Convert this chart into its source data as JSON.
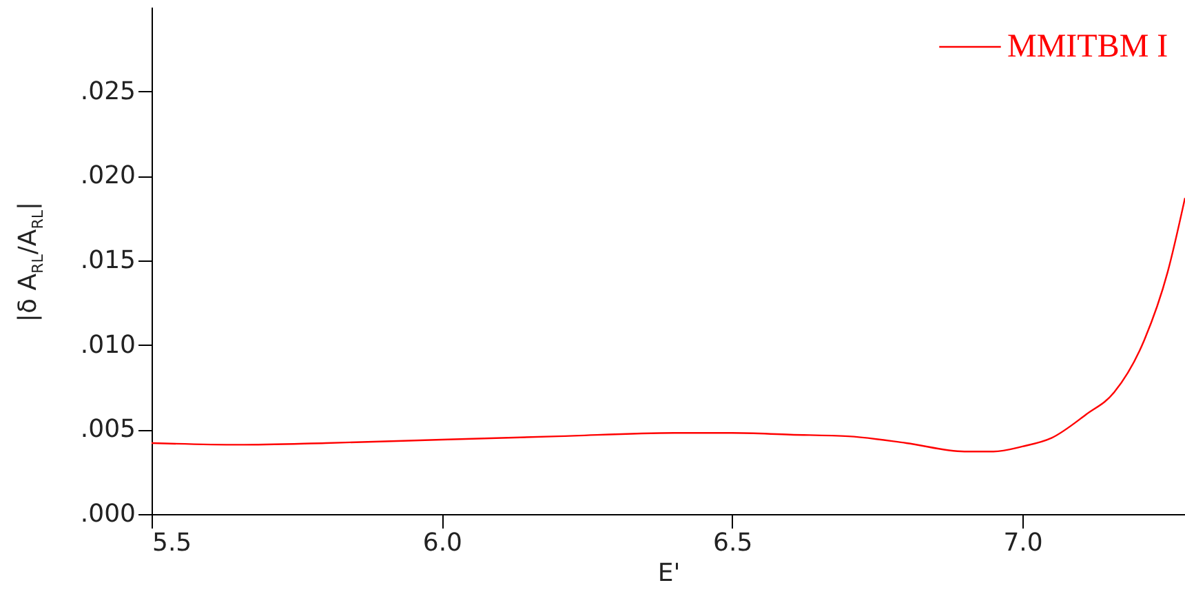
{
  "chart_data": {
    "type": "line",
    "xlabel": "E'",
    "ylabel": "|δ  A$_{RL}$/A$_{RL}$|",
    "x": [
      5.5,
      5.65,
      5.8,
      6.0,
      6.2,
      6.4,
      6.5,
      6.6,
      6.7,
      6.8,
      6.9,
      6.95,
      7.0,
      7.05,
      7.11,
      7.158,
      7.21,
      7.25,
      7.28
    ],
    "series": [
      {
        "name": "MMITBM  I",
        "color": "#ff0000",
        "values": [
          0.0042,
          0.0041,
          0.0042,
          0.0044,
          0.0046,
          0.0048,
          0.0048,
          0.0047,
          0.0046,
          0.0042,
          0.0037,
          0.0037,
          0.004,
          0.0045,
          0.0059,
          0.0072,
          0.0103,
          0.0143,
          0.0187
        ]
      }
    ],
    "xlim": [
      5.5,
      7.28
    ],
    "xticks": [
      5.5,
      {
        "value": 6,
        "label": "6.0"
      },
      6.5,
      {
        "value": 7,
        "label": "7.0"
      }
    ],
    "ylim": [
      0,
      0.03
    ],
    "yticks": [
      {
        "value": 0,
        "label": ".000"
      },
      {
        "value": 0.005,
        "label": ".005"
      },
      {
        "value": 0.01,
        "label": ".010"
      },
      {
        "value": 0.015,
        "label": ".015"
      },
      {
        "value": 0.02,
        "label": ".020"
      },
      {
        "value": 0.025,
        "label": ".025"
      }
    ],
    "grid": false,
    "legend": "top right",
    "line_style": "solid",
    "marker": "none"
  }
}
